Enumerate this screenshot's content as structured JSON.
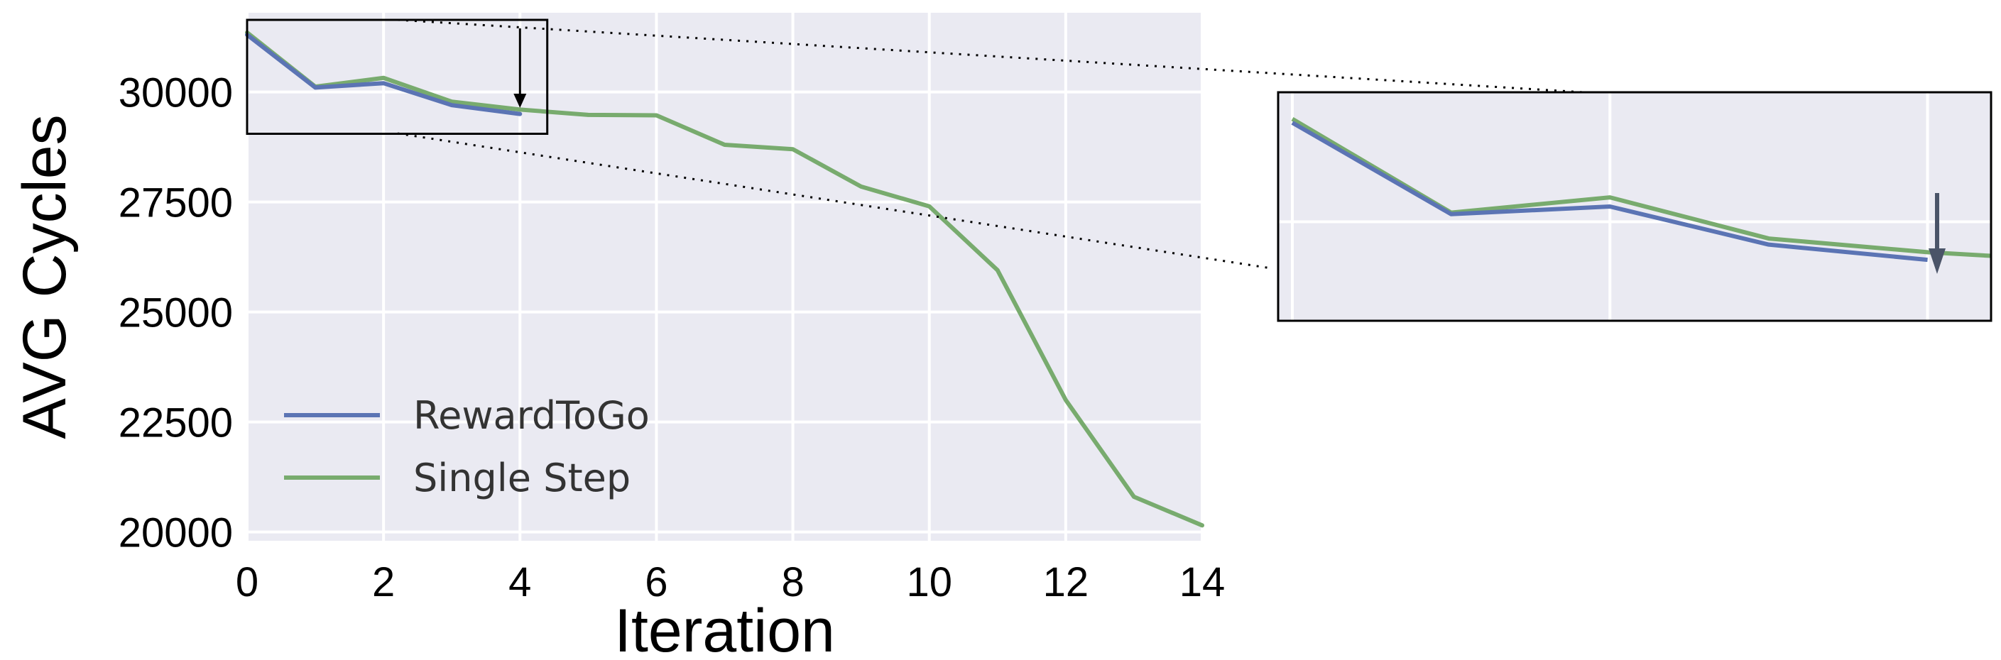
{
  "chart_data": {
    "type": "line",
    "xlabel": "Iteration",
    "ylabel": "AVG Cycles",
    "xlim": [
      0,
      14
    ],
    "ylim": [
      19800,
      31800
    ],
    "xticks": [
      "0",
      "2",
      "4",
      "6",
      "8",
      "10",
      "12",
      "14"
    ],
    "xtick_values": [
      0,
      2,
      4,
      6,
      8,
      10,
      12,
      14
    ],
    "yticks": [
      "20000",
      "22500",
      "25000",
      "27500",
      "30000"
    ],
    "ytick_values": [
      20000,
      22500,
      25000,
      27500,
      30000
    ],
    "grid": true,
    "legend_position": "lower-left",
    "series": [
      {
        "name": "RewardToGo",
        "color": "#5b74b4",
        "x": [
          0,
          1,
          2,
          3,
          4
        ],
        "values": [
          31300,
          30100,
          30200,
          29700,
          29500
        ]
      },
      {
        "name": "Single Step",
        "color": "#78ab6e",
        "x": [
          0,
          1,
          2,
          3,
          4,
          5,
          6,
          7,
          8,
          9,
          10,
          11,
          12,
          13,
          14
        ],
        "values": [
          31350,
          30120,
          30320,
          29780,
          29600,
          29480,
          29470,
          28800,
          28700,
          27850,
          27400,
          25950,
          23000,
          20800,
          20150
        ]
      }
    ],
    "inset": {
      "description_shown": "zoomed view",
      "x_range": [
        0,
        4.4
      ],
      "y_range": [
        29050,
        31800
      ]
    }
  }
}
